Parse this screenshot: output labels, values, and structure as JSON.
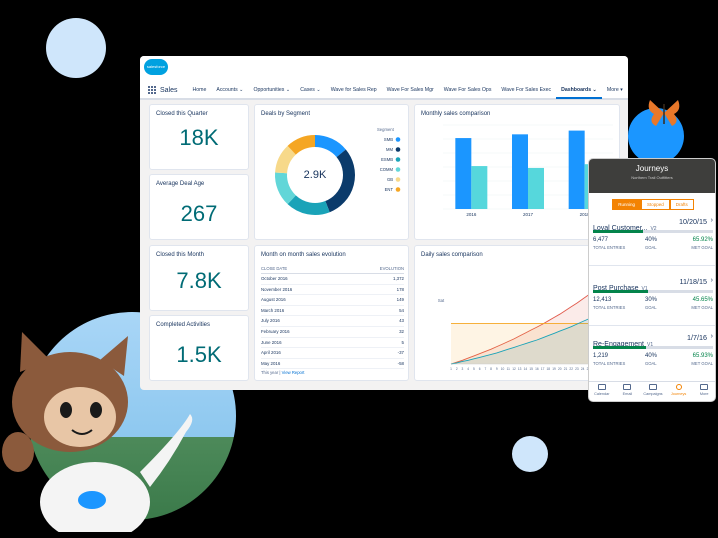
{
  "header": {
    "logo_text": "salesforce",
    "app_name": "Sales",
    "nav_items": [
      "Home",
      "Accounts",
      "Opportunities",
      "Cases",
      "Wave for Sales Rep",
      "Wave For Sales Mgr",
      "Wave For Sales Ops",
      "Wave For Sales Exec",
      "Dashboards",
      "More"
    ],
    "active_nav": "Dashboards"
  },
  "kpis": [
    {
      "title": "Closed this Quarter",
      "value": "18K"
    },
    {
      "title": "Average Deal Age",
      "value": "267"
    },
    {
      "title": "Closed this Month",
      "value": "7.8K"
    },
    {
      "title": "Completed Activities",
      "value": "1.5K"
    }
  ],
  "deals_by_segment": {
    "title": "Deals by Segment",
    "center_value": "2.9K",
    "legend_title": "Segment",
    "segments": [
      {
        "label": "SMB",
        "value": 0.14,
        "color": "#1b96ff"
      },
      {
        "label": "MM",
        "value": 0.3,
        "color": "#0b3b6b"
      },
      {
        "label": "ESMB",
        "value": 0.18,
        "color": "#1aa3b8"
      },
      {
        "label": "COMM",
        "value": 0.14,
        "color": "#62d6d8"
      },
      {
        "label": "GB",
        "value": 0.12,
        "color": "#f7d98a"
      },
      {
        "label": "ENT",
        "value": 0.12,
        "color": "#f5a623"
      }
    ]
  },
  "monthly_comparison": {
    "title": "Monthly sales comparison",
    "chart_data": {
      "type": "bar",
      "categories": [
        "2016",
        "2017",
        "2018"
      ],
      "series": [
        {
          "values": [
            38,
            40,
            42
          ],
          "color": "#1b96ff"
        },
        {
          "values": [
            23,
            22,
            24
          ],
          "color": "#56d7dc"
        }
      ],
      "ylim": [
        0,
        45
      ],
      "yticks": [
        "",
        "",
        "",
        "",
        "",
        "",
        ""
      ]
    }
  },
  "month_evolution": {
    "title": "Month on month sales evolution",
    "col_date": "CLOSE DATE",
    "col_evo": "EVOLUTION",
    "rows": [
      {
        "date": "October 2016",
        "value": "1,372"
      },
      {
        "date": "November 2016",
        "value": "178"
      },
      {
        "date": "August 2016",
        "value": "149"
      },
      {
        "date": "March 2016",
        "value": "54"
      },
      {
        "date": "July 2016",
        "value": "43"
      },
      {
        "date": "February 2016",
        "value": "32"
      },
      {
        "date": "June 2016",
        "value": "5"
      },
      {
        "date": "April 2016",
        "value": "-37"
      },
      {
        "date": "May 2016",
        "value": "-58"
      }
    ],
    "footer_left": "This year",
    "footer_sep": "|",
    "footer_link": "View Report"
  },
  "daily_comparison": {
    "title": "Daily sales comparison",
    "ylabel": "Sat",
    "chart_data": {
      "type": "line",
      "x": [
        "1",
        "2",
        "3",
        "4",
        "5",
        "6",
        "7",
        "8",
        "9",
        "10",
        "11",
        "12",
        "13",
        "14",
        "15",
        "16",
        "17",
        "18",
        "19",
        "20",
        "21",
        "22",
        "23",
        "24",
        "25",
        "26",
        "27",
        "28",
        "29",
        "30"
      ],
      "series": [
        {
          "values": [
            0,
            0.5,
            1,
            1.6,
            2.2,
            2.8,
            3.4,
            4,
            4.7,
            5.4,
            6.1,
            6.8,
            7.6,
            8.4,
            9.2,
            10,
            10.8,
            11.7,
            12.6,
            13.5,
            14.5,
            15.5,
            16.5,
            17.6,
            18.7,
            19.8,
            21,
            22.2,
            23.4,
            24.6
          ],
          "color": "#e15a4c"
        },
        {
          "values": [
            11,
            11,
            11,
            11,
            11,
            11,
            11,
            11,
            11,
            11,
            11,
            11,
            11,
            11,
            11,
            11,
            11,
            11,
            11,
            11,
            11,
            11,
            11,
            11,
            11,
            11,
            11,
            11,
            11,
            11
          ],
          "color": "#f5a623"
        },
        {
          "values": [
            0,
            0.3,
            0.7,
            1,
            1.4,
            1.8,
            2.2,
            2.6,
            3,
            3.5,
            4,
            4.5,
            5,
            5.5,
            6,
            6.5,
            7.1,
            7.7,
            8.3,
            8.9,
            9.5,
            10.1,
            10.8,
            11.5,
            12.2,
            12.9,
            13.6,
            14.3,
            15,
            15.8
          ],
          "color": "#1aa3b8"
        }
      ],
      "ylim": [
        0,
        26
      ]
    }
  },
  "mobile": {
    "title": "Journeys",
    "subtitle": "Northern Trail Outfitters",
    "tabs": [
      "Running",
      "Stopped",
      "Drafts"
    ],
    "active_tab": "Running",
    "journeys": [
      {
        "name": "Loyal Customer...",
        "version": "V2",
        "date": "10/20/15",
        "progress": 0.42,
        "entries": "6,477",
        "entries_label": "TOTAL ENTRIES",
        "goal_pct": "40%",
        "goal_label": "GOAL",
        "met_goal": "65.92%",
        "met_label": "MET GOAL"
      },
      {
        "name": "Post Purchase",
        "version": "V1",
        "date": "11/18/15",
        "progress": 0.46,
        "entries": "12,413",
        "entries_label": "TOTAL ENTRIES",
        "goal_pct": "30%",
        "goal_label": "GOAL",
        "met_goal": "45.65%",
        "met_label": "MET GOAL"
      },
      {
        "name": "Re-Engagement",
        "version": "V1",
        "date": "1/7/16",
        "progress": 0.44,
        "entries": "1,219",
        "entries_label": "TOTAL ENTRIES",
        "goal_pct": "40%",
        "goal_label": "GOAL",
        "met_goal": "65.93%",
        "met_label": "MET GOAL"
      }
    ],
    "footer": [
      "Calendar",
      "Email",
      "Campaigns",
      "Journeys",
      "More"
    ],
    "active_footer": "Journeys",
    "accent": "#f38303"
  }
}
